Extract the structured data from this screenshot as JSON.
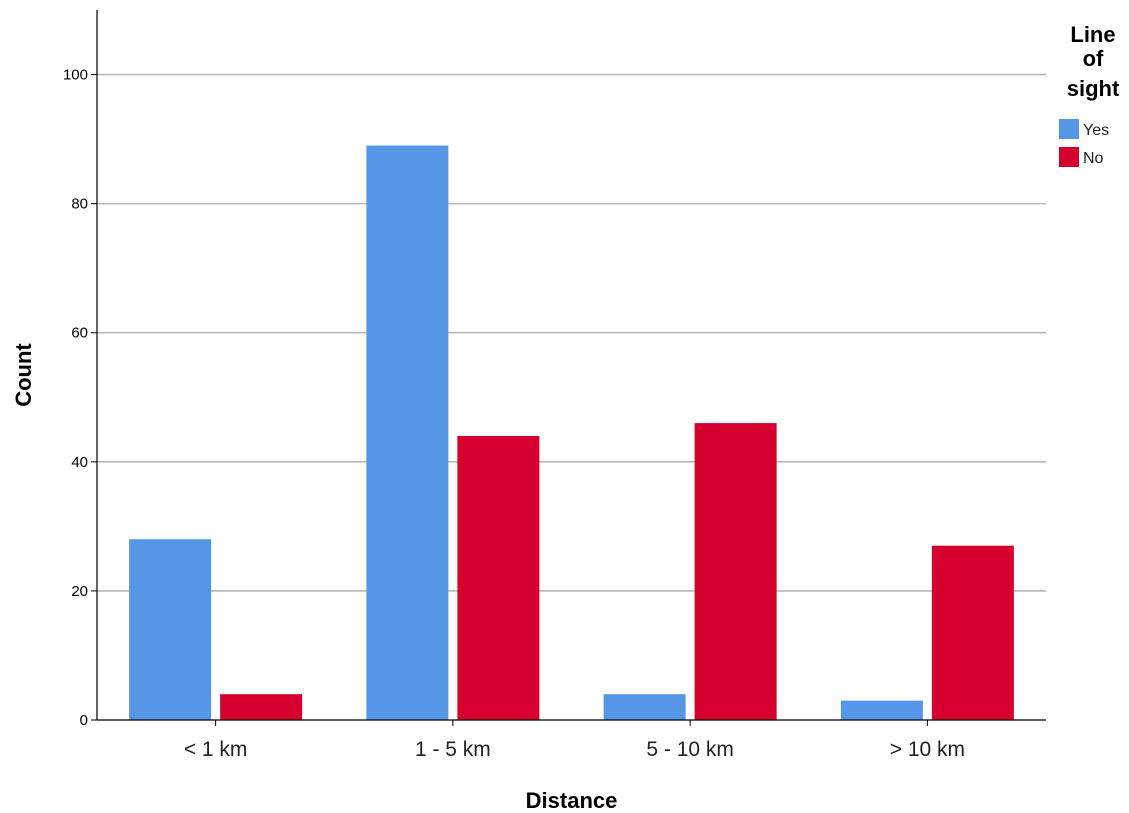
{
  "chart_data": {
    "type": "bar",
    "categories": [
      "< 1 km",
      "1 - 5 km",
      "5 - 10 km",
      "> 10 km"
    ],
    "series": [
      {
        "name": "Yes",
        "values": [
          28,
          89,
          4,
          3
        ],
        "color": "#5596e6"
      },
      {
        "name": "No",
        "values": [
          4,
          44,
          46,
          27
        ],
        "color": "#d6002f"
      }
    ],
    "xlabel": "Distance",
    "ylabel": "Count",
    "ylim": [
      0,
      110
    ],
    "yticks": [
      0,
      20,
      40,
      60,
      80,
      100
    ],
    "grid": true,
    "legend": {
      "title_lines": [
        "Line",
        "of",
        "sight"
      ],
      "placement": "top-right"
    }
  }
}
